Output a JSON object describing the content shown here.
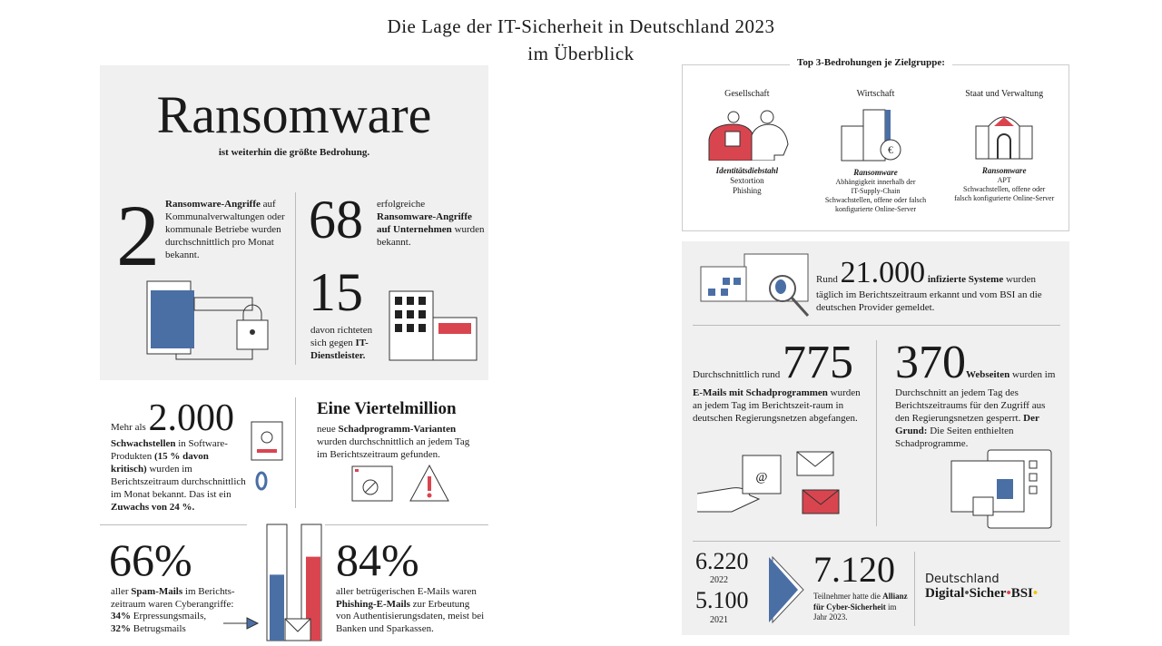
{
  "title": {
    "line1": "Die Lage der IT-Sicherheit in Deutschland 2023",
    "line2": "im Überblick"
  },
  "ransomware": {
    "heading": "Ransomware",
    "subtitle": "ist weiterhin die größte Bedrohung.",
    "stat1": {
      "value": "2",
      "bold": "Ransomware-Angriffe",
      "text": " auf Kommunalverwaltungen oder kommunale Betriebe wurden durchschnittlich pro Monat bekannt."
    },
    "stat2": {
      "value": "68",
      "pre": "erfolgreiche ",
      "bold": "Ransomware-Angriffe auf Unternehmen",
      "text": " wurden bekannt."
    },
    "stat3": {
      "value": "15",
      "text": "davon richteten sich gegen ",
      "bold": "IT-Dienstleister."
    }
  },
  "vulns": {
    "pre": "Mehr als ",
    "value": "2.000",
    "b1": "Schwachstellen",
    "t1": " in Software-Produkten ",
    "b2": "(15 % davon kritisch)",
    "t2": " wurden im Berichtszeitraum durchschnittlich im Monat bekannt. Das ist ein ",
    "b3": "Zuwachs von 24 %."
  },
  "malware": {
    "heading": "Eine Viertelmillion",
    "pre": "neue ",
    "bold": "Schadprogramm-Varianten",
    "text": " wurden durchschnittlich an jedem Tag im Berichtszeitraum gefunden."
  },
  "spam": {
    "value": "66%",
    "pre": "aller ",
    "bold": "Spam-Mails",
    "text": " im Berichts-zeitraum waren Cyberangriffe:",
    "b1": "34%",
    "t1": " Erpressungsmails,",
    "b2": "32%",
    "t2": " Betrugsmails",
    "percent": 66
  },
  "phishing": {
    "value": "84%",
    "text": "aller betrügerischen E-Mails waren ",
    "bold": "Phishing-E-Mails",
    "text2": " zur Erbeutung von Authentisierungsdaten, meist bei Banken und Sparkassen.",
    "percent": 84
  },
  "top3": {
    "heading": "Top 3-Bedrohungen je Zielgruppe:",
    "groups": [
      {
        "name": "Gesellschaft",
        "first": "Identitätsdiebstahl",
        "rest": [
          "Sextortion",
          "Phishing"
        ]
      },
      {
        "name": "Wirtschaft",
        "first": "Ransomware",
        "rest": [
          "Abhängigkeit innerhalb der",
          "IT-Supply-Chain",
          "Schwachstellen, offene oder falsch",
          "konfigurierte Online-Server"
        ]
      },
      {
        "name": "Staat und Verwaltung",
        "first": "Ransomware",
        "rest": [
          "APT",
          "Schwachstellen, offene oder",
          "falsch konfigurierte Online-Server"
        ]
      }
    ]
  },
  "infected": {
    "pre": "Rund ",
    "value": "21.000",
    "bold": " infizierte Systeme",
    "text": " wurden täglich im Berichtszeitraum erkannt und vom BSI an die deutschen Provider gemeldet."
  },
  "emails": {
    "pre": "Durchschnittlich rund ",
    "value": "775",
    "bold": "E-Mails mit Schadprogrammen",
    "text": " wurden an jedem Tag im Berichtszeit-raum in deutschen Regierungsnetzen abgefangen."
  },
  "websites": {
    "value": "370",
    "bold": "Webseiten",
    "text": " wurden im Durchschnitt an jedem Tag des Berichtszeitraums für den Zugriff aus den Regierungsnetzen gesperrt. ",
    "b2": "Der Grund:",
    "t2": " Die Seiten enthielten Schadprogramme."
  },
  "alliance": {
    "v2022": "6.220",
    "y2022": "2022",
    "v2021": "5.100",
    "y2021": "2021",
    "value": "7.120",
    "t1": "Teilnehmer hatte die ",
    "bold": "Allianz für Cyber-Sicherheit",
    "t2": " im Jahr 2023."
  },
  "brand": {
    "line1": "Deutschland",
    "line2": "Digital",
    "sep": "•",
    "line3": "Sicher",
    "line4": "BSI"
  },
  "colors": {
    "blue": "#4a6fa5",
    "red": "#d9454f",
    "grey": "#f0f0f0"
  }
}
